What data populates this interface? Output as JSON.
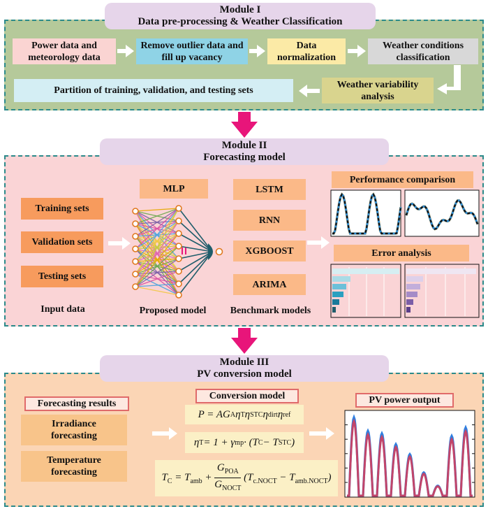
{
  "module1": {
    "title1": "Module I",
    "title2": "Data pre-processing & Weather Classification",
    "step_power": "Power data and meteorology data",
    "step_outlier": "Remove outlier data and fill up vacancy",
    "step_norm": "Data normalization",
    "step_weather": "Weather conditions classification",
    "step_variability": "Weather variability analysis",
    "step_partition": "Partition of training, validation, and testing sets"
  },
  "module2": {
    "title1": "Module II",
    "title2": "Forecasting model",
    "inputs": [
      "Training sets",
      "Validation sets",
      "Testing sets"
    ],
    "input_label": "Input data",
    "proposed": "MLP",
    "proposed_label": "Proposed model",
    "benchmarks": [
      "LSTM",
      "RNN",
      "XGBOOST",
      "ARIMA"
    ],
    "benchmark_label": "Benchmark models",
    "performance": "Performance comparison",
    "error": "Error analysis"
  },
  "module3": {
    "title1": "Module III",
    "title2": "PV conversion model",
    "results_label": "Forecasting results",
    "results": [
      "Irradiance forecasting",
      "Temperature forecasting"
    ],
    "conversion_label": "Conversion model",
    "output_label": "PV power output"
  },
  "colors": {
    "panel1": "#b5c99a",
    "panel2": "#fad4d6",
    "panel3": "#fbd5b5",
    "dash": "#2b8a8a",
    "pink_arrow": "#e8157a",
    "orange_box": "#f79b5d",
    "light_orange_box": "#fbb988"
  }
}
